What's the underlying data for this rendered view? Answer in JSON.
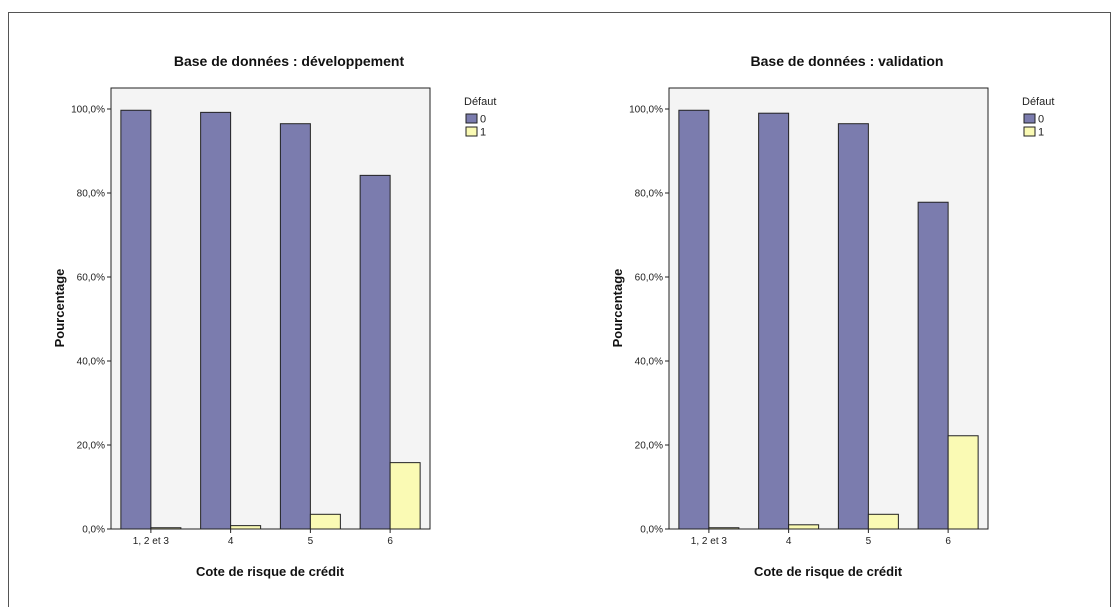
{
  "chart_data": [
    {
      "type": "bar",
      "title": "Base de données : développement",
      "xlabel": "Cote de risque de crédit",
      "ylabel": "Pourcentage",
      "categories": [
        "1, 2 et 3",
        "4",
        "5",
        "6"
      ],
      "ylim": [
        0,
        105
      ],
      "yticks": [
        "0,0%",
        "20,0%",
        "40,0%",
        "60,0%",
        "80,0%",
        "100,0%"
      ],
      "legend_title": "Défaut",
      "legend_position": "right",
      "grid": false,
      "series": [
        {
          "name": "0",
          "color": "#7b7cae",
          "values": [
            99.7,
            99.2,
            96.5,
            84.2
          ]
        },
        {
          "name": "1",
          "color": "#fafab4",
          "values": [
            0.3,
            0.8,
            3.5,
            15.8
          ]
        }
      ]
    },
    {
      "type": "bar",
      "title": "Base de données : validation",
      "xlabel": "Cote de risque de crédit",
      "ylabel": "Pourcentage",
      "categories": [
        "1, 2 et 3",
        "4",
        "5",
        "6"
      ],
      "ylim": [
        0,
        105
      ],
      "yticks": [
        "0,0%",
        "20,0%",
        "40,0%",
        "60,0%",
        "80,0%",
        "100,0%"
      ],
      "legend_title": "Défaut",
      "legend_position": "right",
      "grid": false,
      "series": [
        {
          "name": "0",
          "color": "#7b7cae",
          "values": [
            99.7,
            99.0,
            96.5,
            77.8
          ]
        },
        {
          "name": "1",
          "color": "#fafab4",
          "values": [
            0.3,
            1.0,
            3.5,
            22.2
          ]
        }
      ]
    }
  ],
  "colors": {
    "plot_background": "#f4f4f4",
    "axis": "#222222"
  }
}
